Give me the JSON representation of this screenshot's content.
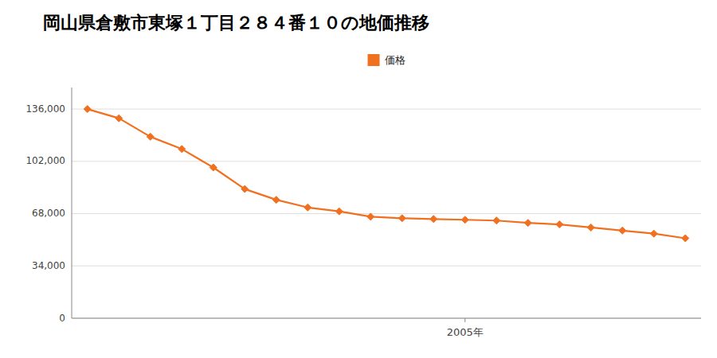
{
  "chart_data": {
    "type": "line",
    "title": "岡山県倉敷市東塚１丁目２８４番１０の地価推移",
    "x": [
      1993,
      1994,
      1995,
      1996,
      1997,
      1998,
      1999,
      2000,
      2001,
      2002,
      2003,
      2004,
      2005,
      2006,
      2007,
      2008,
      2009,
      2010,
      2011,
      2012
    ],
    "series": [
      {
        "name": "価格",
        "color": "#f07020",
        "marker": "diamond",
        "values": [
          136000,
          130000,
          118000,
          110000,
          98000,
          84000,
          77000,
          72000,
          69500,
          66000,
          65000,
          64500,
          64000,
          63500,
          62000,
          61000,
          59000,
          57000,
          55000,
          52000
        ]
      }
    ],
    "xlim": [
      1992.5,
      2012.5
    ],
    "xticks": [
      {
        "value": 2005,
        "label": "2005年"
      }
    ],
    "ylim": [
      0,
      150000
    ],
    "yticks": [
      0,
      {
        "value": 34000,
        "label": "34,000"
      },
      {
        "value": 68000,
        "label": "68,000"
      },
      {
        "value": 102000,
        "label": "102,000"
      },
      {
        "value": 136000,
        "label": "136,000"
      }
    ],
    "grid": "y",
    "legend": "top"
  }
}
